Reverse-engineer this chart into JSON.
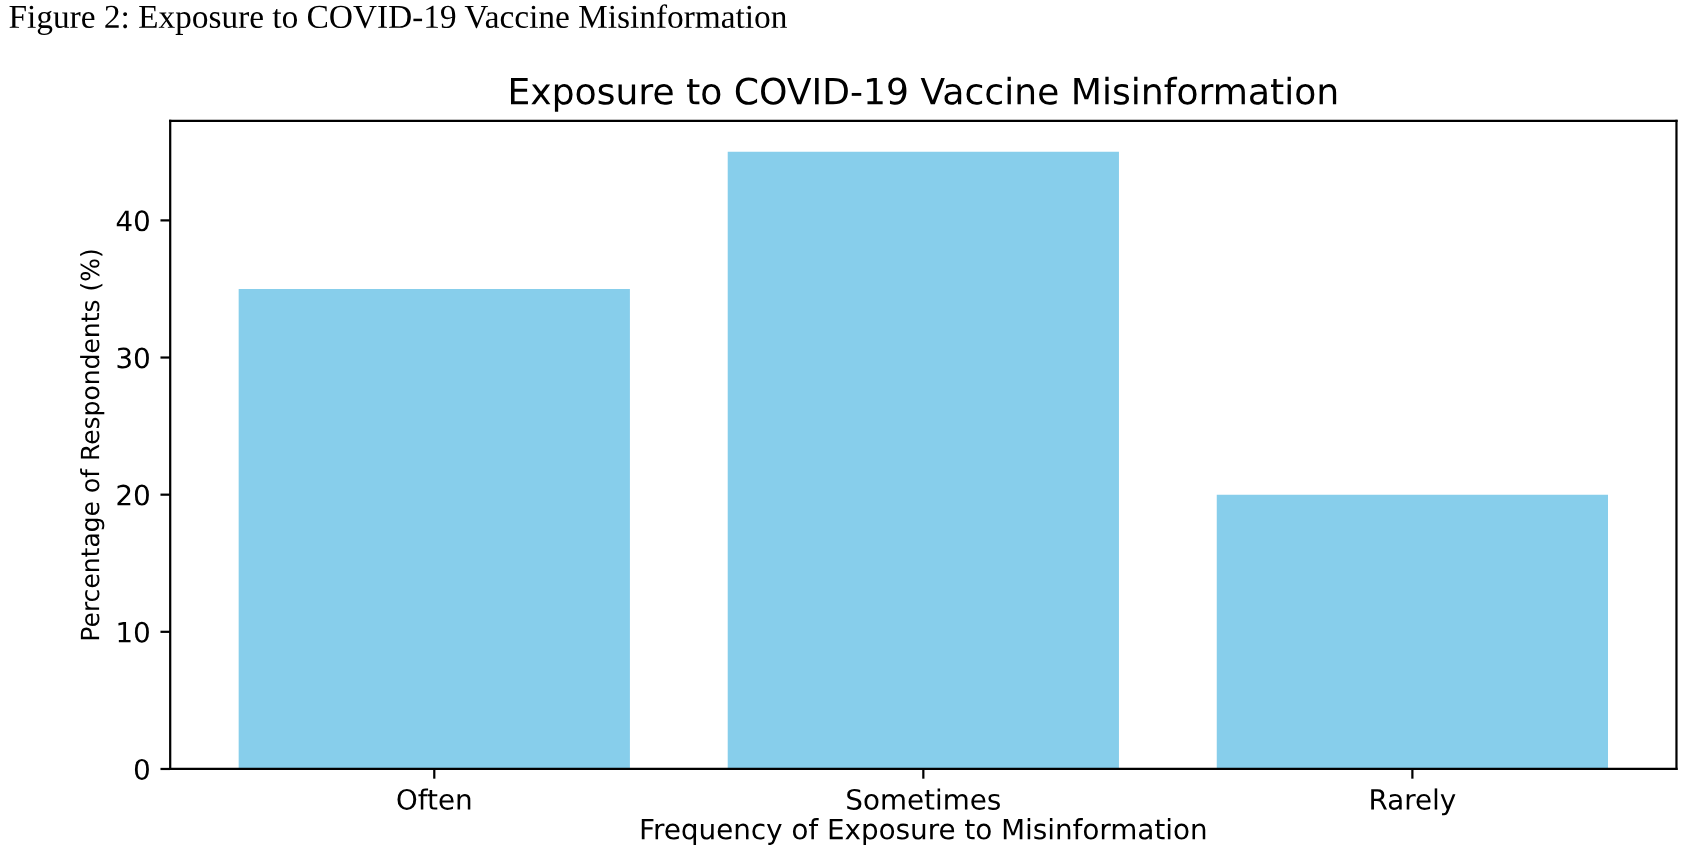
{
  "chart_data": {
    "type": "bar",
    "title": "Exposure to COVID-19 Vaccine Misinformation",
    "xlabel": "Frequency of Exposure to Misinformation",
    "ylabel": "Percentage of Respondents (%)",
    "annotations": [
      "Figure 2: Exposure to COVID-19 Vaccine Misinformation"
    ],
    "categories": [
      "Often",
      "Sometimes",
      "Rarely"
    ],
    "values": [
      35,
      45,
      20
    ],
    "color": "#87ceeb",
    "ylim": [
      0,
      47.25
    ],
    "yticks": [
      0,
      10,
      20,
      30,
      40
    ],
    "grid": false,
    "legend": false
  }
}
